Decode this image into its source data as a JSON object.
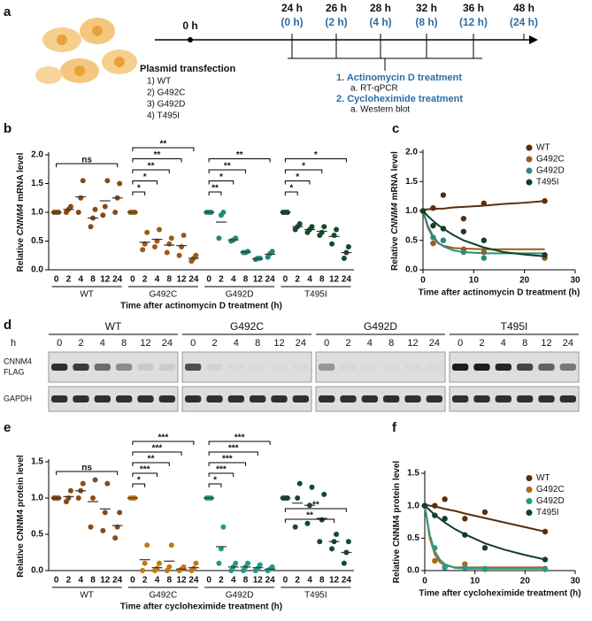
{
  "panel_labels": [
    "a",
    "b",
    "c",
    "d",
    "e",
    "f"
  ],
  "timeline": {
    "start": "0 h",
    "points": [
      {
        "time": "24 h",
        "offset": "(0 h)"
      },
      {
        "time": "26 h",
        "offset": "(2 h)"
      },
      {
        "time": "28 h",
        "offset": "(4 h)"
      },
      {
        "time": "32 h",
        "offset": "(8 h)"
      },
      {
        "time": "36 h",
        "offset": "(12 h)"
      },
      {
        "time": "48 h",
        "offset": "(24 h)"
      }
    ],
    "transfection": {
      "title": "Plasmid transfection",
      "items": [
        "1) WT",
        "2) G492C",
        "3) G492D",
        "4) T495I"
      ]
    },
    "treatments": [
      {
        "title": "1.  Actinomycin D treatment",
        "sub": "a.  RT-qPCR"
      },
      {
        "title": "2.  Cycloheximide treatment",
        "sub": "a.  Western blot"
      }
    ]
  },
  "chart_data": [
    {
      "type": "dot",
      "ylabel": {
        "pre": "Relative ",
        "gene": "CNNM4",
        "post": " mRNA level"
      },
      "xlabel": "Time after actinomycin D treatment (h)",
      "categories": [
        0,
        2,
        4,
        8,
        12,
        24
      ],
      "ylim": [
        0,
        2
      ],
      "yticks": [
        {
          "value": 0,
          "label": "0.0"
        },
        {
          "value": 0.5,
          "label": "0.5"
        },
        {
          "value": 1,
          "label": "1.0"
        },
        {
          "value": 1.5,
          "label": "1.5"
        },
        {
          "value": 2,
          "label": "2.0"
        }
      ],
      "series": [
        {
          "name": "WT",
          "color": "#8a4a12",
          "values": [
            [
              1,
              1,
              1
            ],
            [
              1.0,
              1.05,
              1.1
            ],
            [
              1.0,
              1.25,
              1.55
            ],
            [
              0.75,
              0.9,
              1.05
            ],
            [
              0.95,
              1.1,
              1.55
            ],
            [
              1.0,
              1.25,
              1.5
            ]
          ],
          "means": [
            1,
            1.05,
            1.27,
            0.9,
            1.2,
            1.25
          ],
          "brackets": [
            {
              "to": 5,
              "label": "ns"
            }
          ]
        },
        {
          "name": "G492C",
          "color": "#9c5b14",
          "values": [
            [
              1,
              1,
              1
            ],
            [
              0.35,
              0.45,
              0.65
            ],
            [
              0.4,
              0.5,
              0.7
            ],
            [
              0.3,
              0.45,
              0.55
            ],
            [
              0.25,
              0.4,
              0.6
            ],
            [
              0.15,
              0.2,
              0.25
            ]
          ],
          "means": [
            1,
            0.48,
            0.53,
            0.43,
            0.42,
            0.2
          ],
          "brackets": [
            {
              "to": 1,
              "label": "*"
            },
            {
              "to": 2,
              "label": "*"
            },
            {
              "to": 3,
              "label": "**"
            },
            {
              "to": 4,
              "label": "**"
            },
            {
              "to": 5,
              "label": "**"
            }
          ]
        },
        {
          "name": "G492D",
          "color": "#1f8a78",
          "values": [
            [
              1,
              1,
              1
            ],
            [
              0.55,
              0.95,
              1.0
            ],
            [
              0.5,
              0.52,
              0.55
            ],
            [
              0.3,
              0.3,
              0.32
            ],
            [
              0.18,
              0.2,
              0.2
            ],
            [
              0.22,
              0.28,
              0.32
            ]
          ],
          "means": [
            1,
            0.83,
            0.52,
            0.31,
            0.19,
            0.27
          ],
          "brackets": [
            {
              "to": 1,
              "label": "**"
            },
            {
              "to": 2,
              "label": "*"
            },
            {
              "to": 3,
              "label": "**"
            },
            {
              "to": 5,
              "label": "**"
            }
          ]
        },
        {
          "name": "T495I",
          "color": "#124a2c",
          "values": [
            [
              1,
              1,
              1
            ],
            [
              0.7,
              0.75,
              0.8
            ],
            [
              0.65,
              0.7,
              0.75
            ],
            [
              0.6,
              0.65,
              0.75
            ],
            [
              0.45,
              0.6,
              0.7
            ],
            [
              0.2,
              0.3,
              0.4
            ]
          ],
          "means": [
            1,
            0.75,
            0.7,
            0.67,
            0.58,
            0.3
          ],
          "brackets": [
            {
              "to": 1,
              "label": "*"
            },
            {
              "to": 2,
              "label": "*"
            },
            {
              "to": 3,
              "label": "*"
            },
            {
              "to": 5,
              "label": "*"
            }
          ]
        }
      ]
    },
    {
      "type": "line",
      "ylabel": {
        "pre": "Relative ",
        "gene": "CNNM4",
        "post": " mRNA level"
      },
      "xlabel": "Time after actinomycin D treatment (h)",
      "x": [
        0,
        2,
        4,
        8,
        12,
        24
      ],
      "xlim": [
        0,
        30
      ],
      "xticks": [
        0,
        10,
        20,
        30
      ],
      "ylim": [
        0,
        2
      ],
      "yticks": [
        {
          "value": 0,
          "label": "0.0"
        },
        {
          "value": 0.5,
          "label": "0.5"
        },
        {
          "value": 1,
          "label": "1.0"
        },
        {
          "value": 1.5,
          "label": "1.5"
        },
        {
          "value": 2,
          "label": "2.0"
        }
      ],
      "legend": "upper right",
      "fit_x": [
        0,
        1,
        2,
        3,
        4,
        6,
        8,
        12,
        16,
        20,
        24
      ],
      "series": [
        {
          "name": "WT",
          "color": "#5a2d0c",
          "values": [
            1,
            1.05,
            1.27,
            0.87,
            1.13,
            1.17
          ],
          "fit_values": [
            1.02,
            1.03,
            1.03,
            1.04,
            1.04,
            1.06,
            1.07,
            1.09,
            1.12,
            1.14,
            1.17
          ]
        },
        {
          "name": "G492C",
          "color": "#a0591b",
          "values": [
            1,
            0.45,
            0.5,
            0.35,
            0.3,
            0.2
          ],
          "fit_values": [
            1,
            0.71,
            0.55,
            0.45,
            0.41,
            0.37,
            0.36,
            0.35,
            0.35,
            0.35,
            0.35
          ]
        },
        {
          "name": "G492D",
          "color": "#2a8c78",
          "values": [
            1,
            0.55,
            0.5,
            0.3,
            0.2,
            0.25
          ],
          "fit_values": [
            1,
            0.74,
            0.57,
            0.46,
            0.4,
            0.33,
            0.3,
            0.28,
            0.28,
            0.28,
            0.28
          ]
        },
        {
          "name": "T495I",
          "color": "#123f2a",
          "values": [
            1,
            0.75,
            0.7,
            0.65,
            0.5,
            0.25
          ],
          "fit_values": [
            1,
            0.91,
            0.83,
            0.76,
            0.7,
            0.59,
            0.5,
            0.38,
            0.3,
            0.26,
            0.23
          ]
        }
      ]
    },
    {
      "type": "dot",
      "ylabel": {
        "pre": "Relative CNNM4 protein level"
      },
      "xlabel": "Time after cycloheximide treatment (h)",
      "categories": [
        0,
        2,
        4,
        8,
        12,
        24
      ],
      "ylim": [
        0,
        1.5
      ],
      "yticks": [
        {
          "value": 0,
          "label": "0.0"
        },
        {
          "value": 0.5,
          "label": "0.5"
        },
        {
          "value": 1,
          "label": "1.0"
        },
        {
          "value": 1.5,
          "label": "1.5"
        }
      ],
      "series": [
        {
          "name": "WT",
          "color": "#8a4a12",
          "values": [
            [
              1,
              1,
              1
            ],
            [
              0.95,
              1.0,
              1.1
            ],
            [
              1.0,
              1.1,
              1.2
            ],
            [
              0.6,
              1.0,
              1.25
            ],
            [
              0.55,
              0.8,
              1.2
            ],
            [
              0.45,
              0.6,
              0.8
            ]
          ],
          "means": [
            1,
            1.02,
            1.1,
            0.95,
            0.85,
            0.62
          ],
          "brackets": [
            {
              "to": 5,
              "label": "ns"
            }
          ]
        },
        {
          "name": "G492C",
          "color": "#c17a12",
          "values": [
            [
              1,
              1,
              1
            ],
            [
              0,
              0.1,
              0.35
            ],
            [
              0,
              0.03,
              0.1
            ],
            [
              0,
              0.05,
              0.35
            ],
            [
              0,
              0.02,
              0.05
            ],
            [
              0,
              0.03,
              0.1
            ]
          ],
          "means": [
            1,
            0.15,
            0.04,
            0.13,
            0.02,
            0.04
          ],
          "brackets": [
            {
              "to": 1,
              "label": "*"
            },
            {
              "to": 2,
              "label": "***"
            },
            {
              "to": 3,
              "label": "**"
            },
            {
              "to": 4,
              "label": "***"
            },
            {
              "to": 5,
              "label": "***"
            }
          ]
        },
        {
          "name": "G492D",
          "color": "#1f9a86",
          "values": [
            [
              1,
              1,
              1
            ],
            [
              0.1,
              0.3,
              0.6
            ],
            [
              0,
              0.05,
              0.1
            ],
            [
              0,
              0.05,
              0.1
            ],
            [
              0,
              0.03,
              0.08
            ],
            [
              0,
              0.02,
              0.05
            ]
          ],
          "means": [
            1,
            0.33,
            0.05,
            0.05,
            0.04,
            0.02
          ],
          "brackets": [
            {
              "to": 1,
              "label": "*"
            },
            {
              "to": 2,
              "label": "***"
            },
            {
              "to": 3,
              "label": "***"
            },
            {
              "to": 4,
              "label": "***"
            },
            {
              "to": 5,
              "label": "***"
            }
          ]
        },
        {
          "name": "T495I",
          "color": "#124a2c",
          "values": [
            [
              1,
              1,
              1
            ],
            [
              0.6,
              1.0,
              1.2
            ],
            [
              0.65,
              0.9,
              1.15
            ],
            [
              0.4,
              0.7,
              1.05
            ],
            [
              0.3,
              0.4,
              0.5
            ],
            [
              0.1,
              0.25,
              0.4
            ]
          ],
          "means": [
            1,
            0.93,
            0.9,
            0.72,
            0.4,
            0.25
          ],
          "brackets": [
            {
              "to": 4,
              "label": "**"
            },
            {
              "to": 5,
              "label": "**"
            }
          ]
        }
      ]
    },
    {
      "type": "line",
      "ylabel": {
        "pre": "Relative CNNM4 protein level"
      },
      "xlabel": "Time after cycloheximide treatment (h)",
      "x": [
        0,
        2,
        4,
        8,
        12,
        24
      ],
      "xlim": [
        0,
        30
      ],
      "xticks": [
        0,
        10,
        20,
        30
      ],
      "ylim": [
        0,
        1.5
      ],
      "yticks": [
        {
          "value": 0,
          "label": "0.0"
        },
        {
          "value": 0.5,
          "label": "0.5"
        },
        {
          "value": 1,
          "label": "1.0"
        },
        {
          "value": 1.5,
          "label": "1.5"
        }
      ],
      "legend": "center right",
      "fit_x": [
        0,
        1,
        2,
        3,
        4,
        6,
        8,
        12,
        16,
        20,
        24
      ],
      "series": [
        {
          "name": "WT",
          "color": "#5a2d0c",
          "values": [
            1,
            1.0,
            1.1,
            0.8,
            0.9,
            0.6
          ],
          "fit_values": [
            1.02,
            1.0,
            0.99,
            0.97,
            0.95,
            0.92,
            0.88,
            0.81,
            0.74,
            0.67,
            0.6
          ]
        },
        {
          "name": "G492C",
          "color": "#b0651c",
          "values": [
            1,
            0.15,
            0.05,
            0.1,
            0.02,
            0.03
          ],
          "fit_values": [
            1,
            0.5,
            0.25,
            0.13,
            0.08,
            0.05,
            0.05,
            0.05,
            0.05,
            0.05,
            0.05
          ]
        },
        {
          "name": "G492D",
          "color": "#2a9a86",
          "values": [
            1,
            0.35,
            0.05,
            0.05,
            0.03,
            0.02
          ],
          "fit_values": [
            1,
            0.55,
            0.3,
            0.17,
            0.1,
            0.04,
            0.03,
            0.03,
            0.03,
            0.03,
            0.03
          ]
        },
        {
          "name": "T495I",
          "color": "#123f2a",
          "values": [
            1,
            0.85,
            0.8,
            0.55,
            0.35,
            0.17
          ],
          "fit_values": [
            1,
            0.93,
            0.86,
            0.8,
            0.74,
            0.64,
            0.56,
            0.42,
            0.32,
            0.24,
            0.17
          ]
        }
      ]
    }
  ],
  "blot": {
    "groups": [
      "WT",
      "G492C",
      "G492D",
      "T495I"
    ],
    "time_label": "h",
    "times": [
      0,
      2,
      4,
      8,
      12,
      24
    ],
    "rows": [
      {
        "labels": [
          "CNNM4",
          "FLAG"
        ],
        "intensity": [
          [
            0.85,
            0.8,
            0.55,
            0.4,
            0.1,
            0.08
          ],
          [
            0.7,
            0.05,
            0.02,
            0.02,
            0.02,
            0.02
          ],
          [
            0.35,
            0.03,
            0.02,
            0.02,
            0.02,
            0.02
          ],
          [
            0.95,
            0.95,
            0.9,
            0.75,
            0.6,
            0.5
          ]
        ]
      },
      {
        "labels": [
          "GAPDH"
        ],
        "intensity": [
          [
            0.85,
            0.85,
            0.85,
            0.85,
            0.85,
            0.85
          ],
          [
            0.85,
            0.85,
            0.85,
            0.85,
            0.85,
            0.85
          ],
          [
            0.85,
            0.85,
            0.85,
            0.85,
            0.85,
            0.85
          ],
          [
            0.85,
            0.85,
            0.85,
            0.85,
            0.85,
            0.85
          ]
        ]
      }
    ]
  }
}
